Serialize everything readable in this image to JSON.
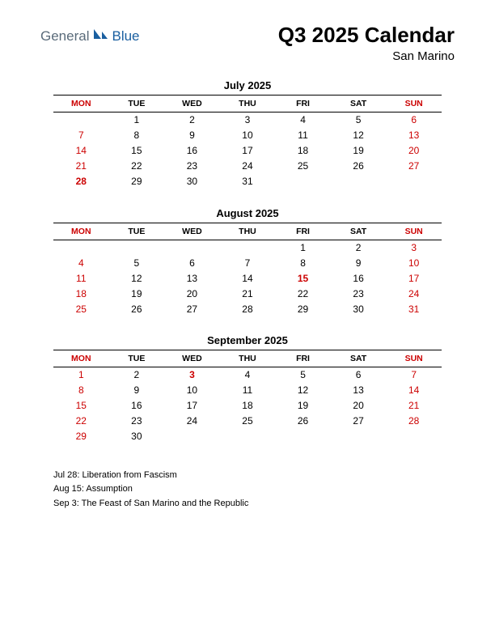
{
  "logo": {
    "text1": "General",
    "text2": "Blue",
    "text1_color": "#5a6b7a",
    "text2_color": "#1a5fa0",
    "icon_color": "#1a5fa0"
  },
  "header": {
    "title": "Q3 2025 Calendar",
    "subtitle": "San Marino"
  },
  "day_headers": [
    "MON",
    "TUE",
    "WED",
    "THU",
    "FRI",
    "SAT",
    "SUN"
  ],
  "red_color": "#cc0000",
  "black_color": "#000000",
  "months": [
    {
      "title": "July 2025",
      "weeks": [
        [
          {
            "d": ""
          },
          {
            "d": "1"
          },
          {
            "d": "2"
          },
          {
            "d": "3"
          },
          {
            "d": "4"
          },
          {
            "d": "5"
          },
          {
            "d": "6",
            "c": "red"
          }
        ],
        [
          {
            "d": "7",
            "c": "red"
          },
          {
            "d": "8"
          },
          {
            "d": "9"
          },
          {
            "d": "10"
          },
          {
            "d": "11"
          },
          {
            "d": "12"
          },
          {
            "d": "13",
            "c": "red"
          }
        ],
        [
          {
            "d": "14",
            "c": "red"
          },
          {
            "d": "15"
          },
          {
            "d": "16"
          },
          {
            "d": "17"
          },
          {
            "d": "18"
          },
          {
            "d": "19"
          },
          {
            "d": "20",
            "c": "red"
          }
        ],
        [
          {
            "d": "21",
            "c": "red"
          },
          {
            "d": "22"
          },
          {
            "d": "23"
          },
          {
            "d": "24"
          },
          {
            "d": "25"
          },
          {
            "d": "26"
          },
          {
            "d": "27",
            "c": "red"
          }
        ],
        [
          {
            "d": "28",
            "c": "redb"
          },
          {
            "d": "29"
          },
          {
            "d": "30"
          },
          {
            "d": "31"
          },
          {
            "d": ""
          },
          {
            "d": ""
          },
          {
            "d": ""
          }
        ]
      ]
    },
    {
      "title": "August 2025",
      "weeks": [
        [
          {
            "d": ""
          },
          {
            "d": ""
          },
          {
            "d": ""
          },
          {
            "d": ""
          },
          {
            "d": "1"
          },
          {
            "d": "2"
          },
          {
            "d": "3",
            "c": "red"
          }
        ],
        [
          {
            "d": "4",
            "c": "red"
          },
          {
            "d": "5"
          },
          {
            "d": "6"
          },
          {
            "d": "7"
          },
          {
            "d": "8"
          },
          {
            "d": "9"
          },
          {
            "d": "10",
            "c": "red"
          }
        ],
        [
          {
            "d": "11",
            "c": "red"
          },
          {
            "d": "12"
          },
          {
            "d": "13"
          },
          {
            "d": "14"
          },
          {
            "d": "15",
            "c": "redb"
          },
          {
            "d": "16"
          },
          {
            "d": "17",
            "c": "red"
          }
        ],
        [
          {
            "d": "18",
            "c": "red"
          },
          {
            "d": "19"
          },
          {
            "d": "20"
          },
          {
            "d": "21"
          },
          {
            "d": "22"
          },
          {
            "d": "23"
          },
          {
            "d": "24",
            "c": "red"
          }
        ],
        [
          {
            "d": "25",
            "c": "red"
          },
          {
            "d": "26"
          },
          {
            "d": "27"
          },
          {
            "d": "28"
          },
          {
            "d": "29"
          },
          {
            "d": "30"
          },
          {
            "d": "31",
            "c": "red"
          }
        ]
      ]
    },
    {
      "title": "September 2025",
      "weeks": [
        [
          {
            "d": "1",
            "c": "red"
          },
          {
            "d": "2"
          },
          {
            "d": "3",
            "c": "redb"
          },
          {
            "d": "4"
          },
          {
            "d": "5"
          },
          {
            "d": "6"
          },
          {
            "d": "7",
            "c": "red"
          }
        ],
        [
          {
            "d": "8",
            "c": "red"
          },
          {
            "d": "9"
          },
          {
            "d": "10"
          },
          {
            "d": "11"
          },
          {
            "d": "12"
          },
          {
            "d": "13"
          },
          {
            "d": "14",
            "c": "red"
          }
        ],
        [
          {
            "d": "15",
            "c": "red"
          },
          {
            "d": "16"
          },
          {
            "d": "17"
          },
          {
            "d": "18"
          },
          {
            "d": "19"
          },
          {
            "d": "20"
          },
          {
            "d": "21",
            "c": "red"
          }
        ],
        [
          {
            "d": "22",
            "c": "red"
          },
          {
            "d": "23"
          },
          {
            "d": "24"
          },
          {
            "d": "25"
          },
          {
            "d": "26"
          },
          {
            "d": "27"
          },
          {
            "d": "28",
            "c": "red"
          }
        ],
        [
          {
            "d": "29",
            "c": "red"
          },
          {
            "d": "30"
          },
          {
            "d": ""
          },
          {
            "d": ""
          },
          {
            "d": ""
          },
          {
            "d": ""
          },
          {
            "d": ""
          }
        ]
      ]
    }
  ],
  "holidays": [
    "Jul 28: Liberation from Fascism",
    "Aug 15: Assumption",
    "Sep 3: The Feast of San Marino and the Republic"
  ]
}
